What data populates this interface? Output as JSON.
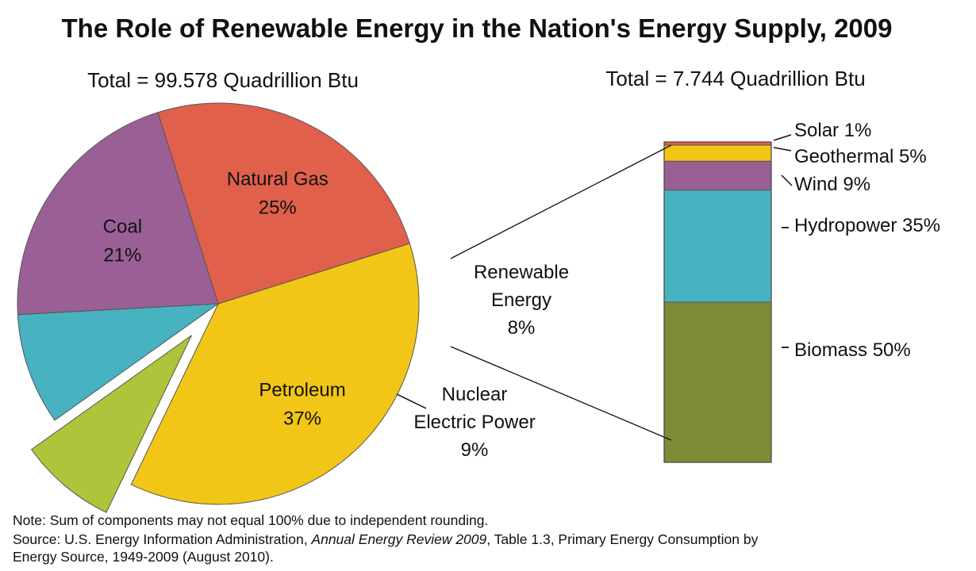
{
  "chart_data": [
    {
      "type": "pie",
      "title": "The Role of Renewable Energy in the Nation's Energy Supply, 2009",
      "subtitle": "Total = 99.578 Quadrillion Btu",
      "exploded_slice": "Renewable Energy",
      "slices": [
        {
          "label": "Petroleum",
          "pct_label": "37%",
          "value": 37,
          "color": "#F2C616"
        },
        {
          "label": "Renewable Energy",
          "pct_label": "8%",
          "value": 8,
          "color": "#AFC43A"
        },
        {
          "label": "Nuclear Electric Power",
          "pct_label": "9%",
          "value": 9,
          "color": "#47B2C0"
        },
        {
          "label": "Coal",
          "pct_label": "21%",
          "value": 21,
          "color": "#9A6095"
        },
        {
          "label": "Natural Gas",
          "pct_label": "25%",
          "value": 25,
          "color": "#E0604C"
        }
      ]
    },
    {
      "type": "bar",
      "stacked": true,
      "subtitle": "Total = 7.744 Quadrillion Btu",
      "segments": [
        {
          "label": "Biomass",
          "pct_label": "50%",
          "value": 50,
          "color": "#7E8B37"
        },
        {
          "label": "Hydropower",
          "pct_label": "35%",
          "value": 35,
          "color": "#47B2C0"
        },
        {
          "label": "Wind",
          "pct_label": "9%",
          "value": 9,
          "color": "#9A6095"
        },
        {
          "label": "Geothermal",
          "pct_label": "5%",
          "value": 5,
          "color": "#F2C616"
        },
        {
          "label": "Solar",
          "pct_label": "1%",
          "value": 1,
          "color": "#E0604C"
        }
      ]
    }
  ],
  "footnote": {
    "note": "Note: Sum of components may not equal 100% due to independent rounding.",
    "source_prefix": "Source: U.S. Energy Information Administration, ",
    "source_italic": "Annual Energy Review 2009",
    "source_suffix": ", Table 1.3, Primary Energy Consumption by",
    "source_line2": "Energy Source, 1949-2009 (August 2010)."
  }
}
